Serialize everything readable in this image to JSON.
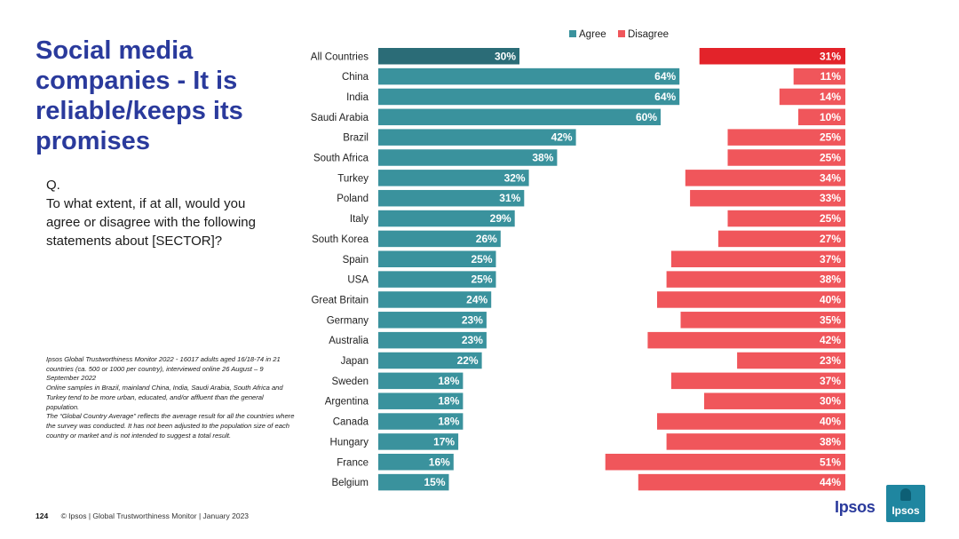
{
  "title": "Social media companies - It is reliable/keeps its promises",
  "question": {
    "prefix": "Q.",
    "text": "To what extent, if at all, would you agree or disagree with the following statements about [SECTOR]?"
  },
  "notes": {
    "line1": "Ipsos Global Trustworthiness Monitor 2022 - 16017 adults aged 16/18-74 in 21 countries (ca. 500 or 1000 per country), interviewed online 26 August – 9 September 2022",
    "line2": "Online samples in Brazil, mainland China, India, Saudi Arabia, South Africa and Turkey tend to be more urban, educated, and/or affluent than the general population.",
    "line3": "The “Global Country Average” reflects the average result for all the countries where the survey was conducted. It has not been adjusted to the population size of each country or market and is not intended to suggest a total result."
  },
  "footer": {
    "page_number": "124",
    "text": "© Ipsos | Global Trustworthiness Monitor | January 2023"
  },
  "logo": {
    "text": "Ipsos",
    "box_text": "Ipsos"
  },
  "colors": {
    "agree": "#3a929d",
    "agree_highlight": "#2b6c77",
    "disagree": "#f0565b",
    "disagree_highlight": "#e3232a",
    "title": "#2a3a9c"
  },
  "chart_data": {
    "type": "bar",
    "title": "",
    "legend": [
      "Agree",
      "Disagree"
    ],
    "legend_position": "top",
    "categories": [
      "All Countries",
      "China",
      "India",
      "Saudi Arabia",
      "Brazil",
      "South Africa",
      "Turkey",
      "Poland",
      "Italy",
      "South Korea",
      "Spain",
      "USA",
      "Great Britain",
      "Germany",
      "Australia",
      "Japan",
      "Sweden",
      "Argentina",
      "Canada",
      "Hungary",
      "France",
      "Belgium"
    ],
    "series": [
      {
        "name": "Agree",
        "values": [
          30,
          64,
          64,
          60,
          42,
          38,
          32,
          31,
          29,
          26,
          25,
          25,
          24,
          23,
          23,
          22,
          18,
          18,
          18,
          17,
          16,
          15
        ]
      },
      {
        "name": "Disagree",
        "values": [
          31,
          11,
          14,
          10,
          25,
          25,
          34,
          33,
          25,
          27,
          37,
          38,
          40,
          35,
          42,
          23,
          37,
          30,
          40,
          38,
          51,
          44
        ]
      }
    ],
    "value_suffix": "%",
    "highlight_category": "All Countries"
  }
}
